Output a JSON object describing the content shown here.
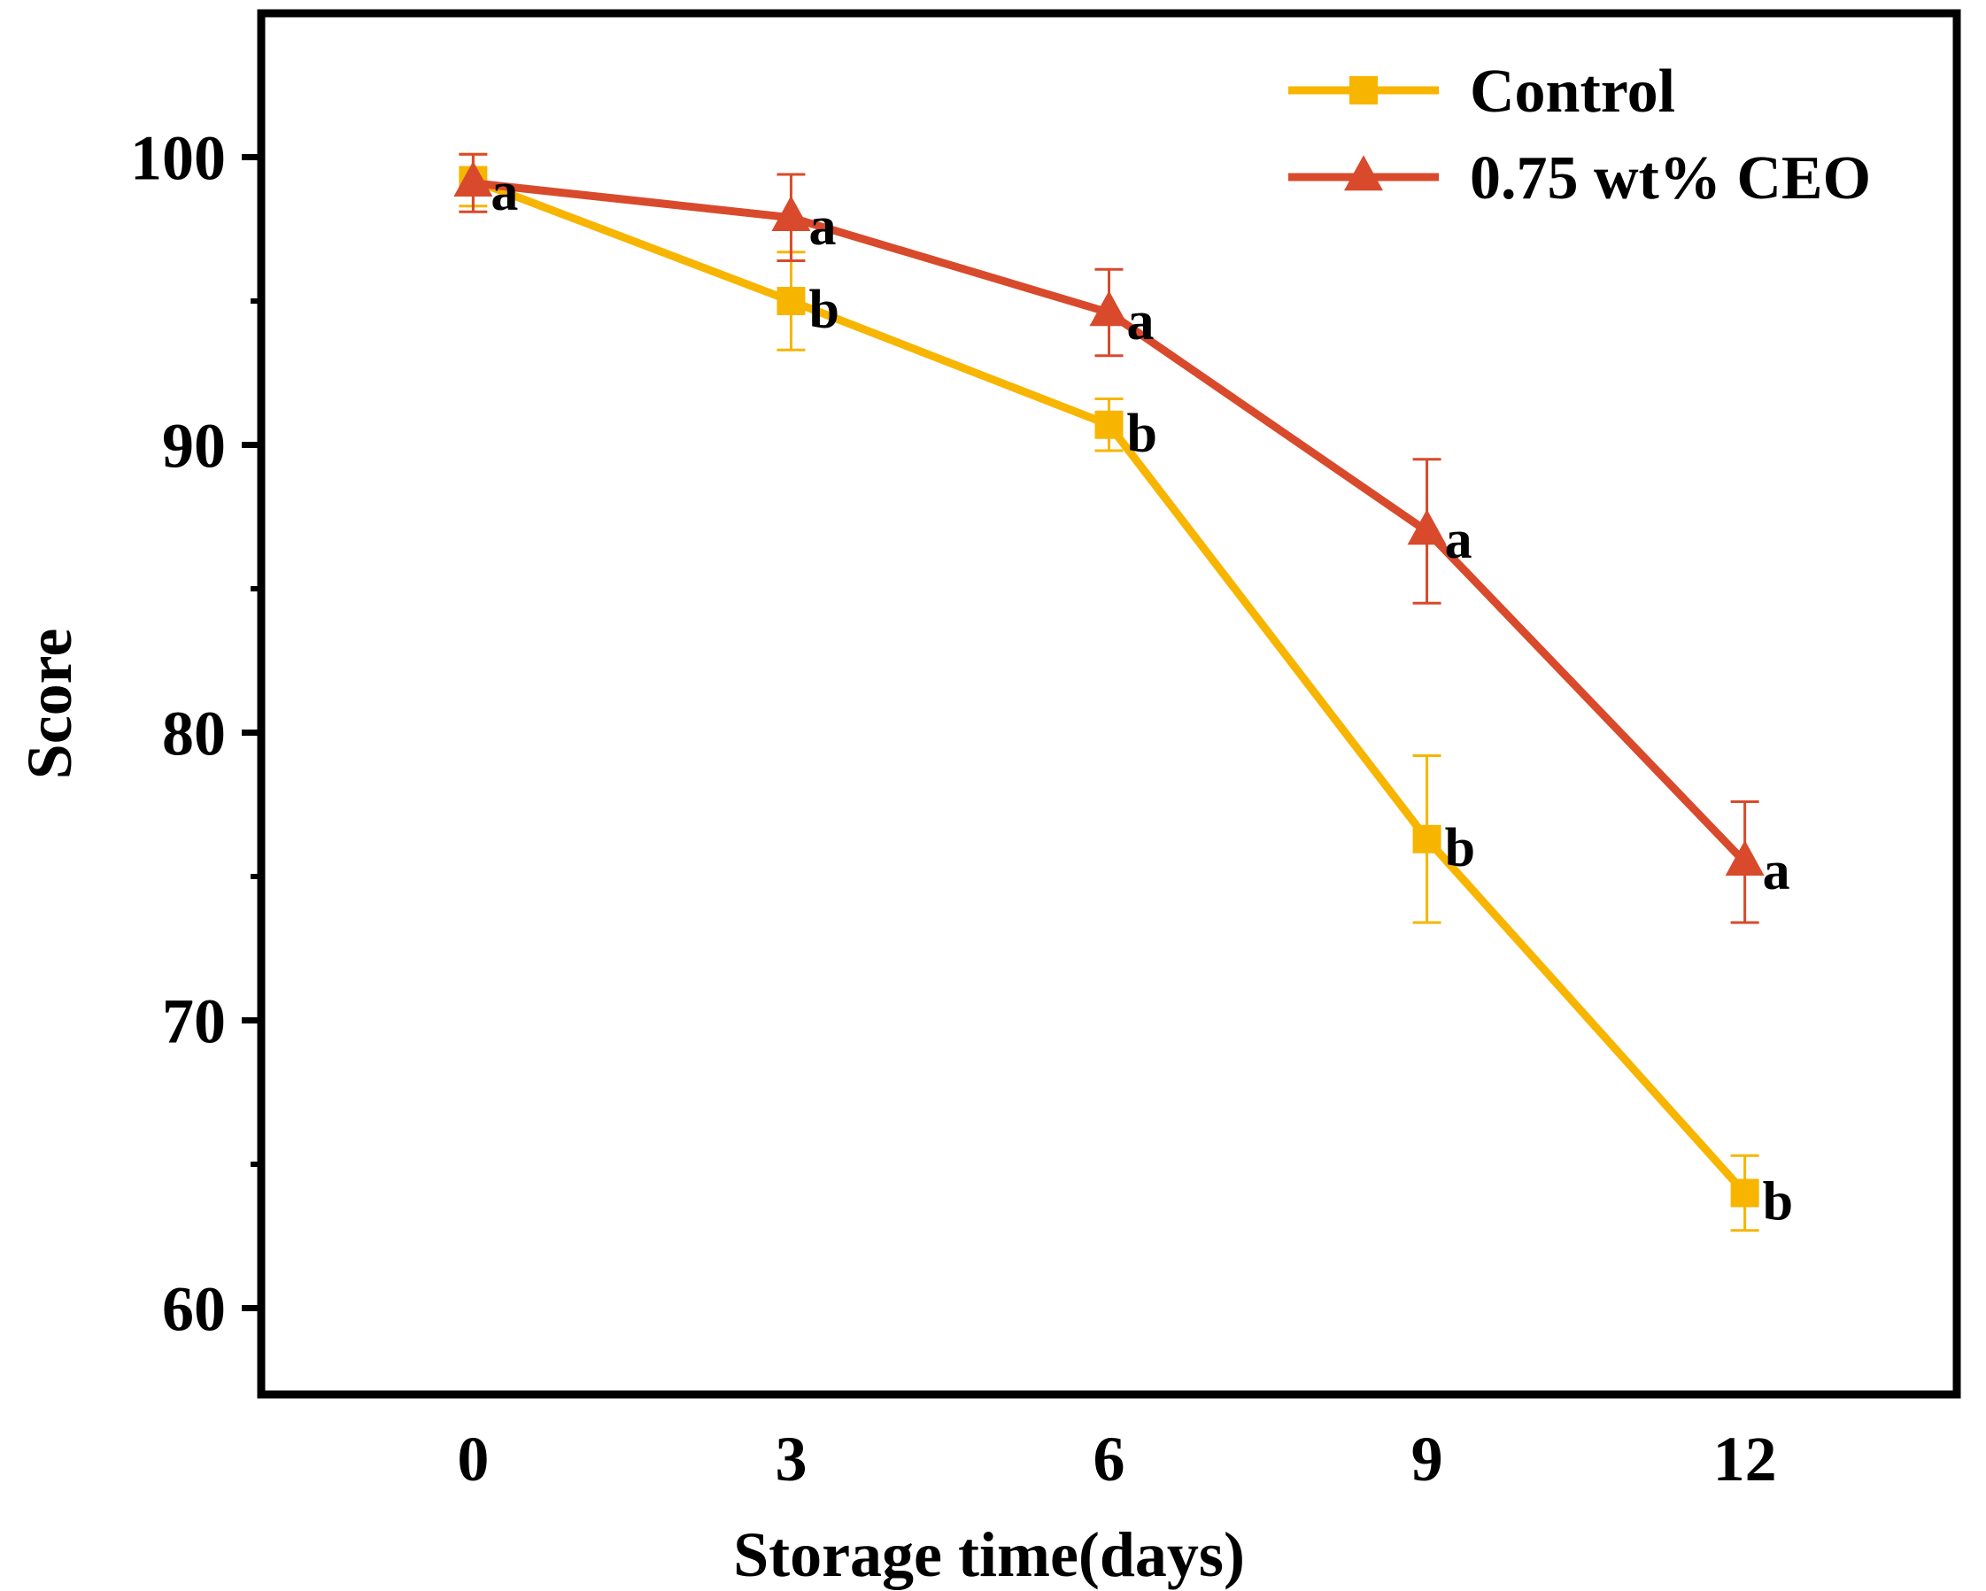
{
  "chart_data": {
    "type": "line",
    "title": "",
    "xlabel": "Storage time(days)",
    "ylabel": "Score",
    "x": [
      0,
      3,
      6,
      9,
      12
    ],
    "x_tick_labels": [
      "0",
      "3",
      "6",
      "9",
      "12"
    ],
    "y_ticks": [
      60,
      70,
      80,
      90,
      100
    ],
    "y_tick_labels": [
      "60",
      "70",
      "80",
      "90",
      "100"
    ],
    "xlim": [
      -2,
      14
    ],
    "ylim": [
      57,
      105
    ],
    "grid": false,
    "legend_position": "top-right",
    "series": [
      {
        "name": "Control",
        "color": "#F7B500",
        "marker": "square",
        "values": [
          99.2,
          95.0,
          90.7,
          76.3,
          64.0
        ],
        "errors": [
          0.9,
          1.7,
          0.9,
          2.9,
          1.3
        ],
        "labels": [
          "",
          "b",
          "b",
          "b",
          "b"
        ]
      },
      {
        "name": "0.75 wt% CEO",
        "color": "#D84A2B",
        "marker": "triangle",
        "values": [
          99.1,
          97.9,
          94.6,
          87.0,
          75.5
        ],
        "errors": [
          1.0,
          1.5,
          1.5,
          2.5,
          2.1
        ],
        "labels": [
          "a",
          "a",
          "a",
          "a",
          "a"
        ]
      }
    ]
  }
}
